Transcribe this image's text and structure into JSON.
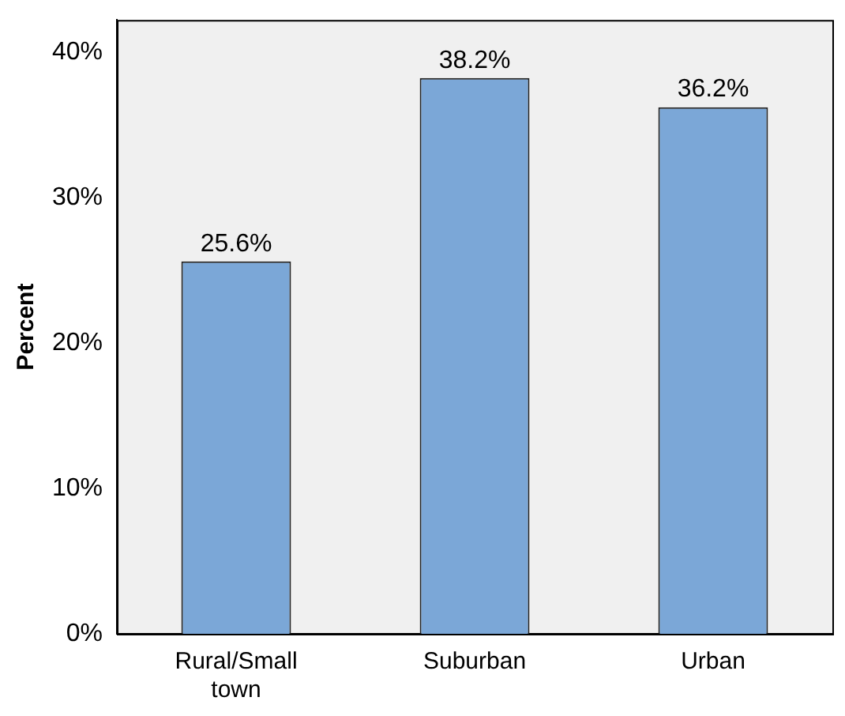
{
  "chart_data": {
    "type": "bar",
    "ylabel": "Percent",
    "categories": [
      "Rural/Small town",
      "Suburban",
      "Urban"
    ],
    "values": [
      25.6,
      38.2,
      36.2
    ],
    "value_labels": [
      "25.6%",
      "38.2%",
      "36.2%"
    ],
    "color": "#7ba7d7",
    "ylim": [
      0,
      42.2
    ],
    "yticks": [
      {
        "value": 0,
        "label": "0%"
      },
      {
        "value": 10,
        "label": "10%"
      },
      {
        "value": 20,
        "label": "20%"
      },
      {
        "value": 30,
        "label": "30%"
      },
      {
        "value": 40,
        "label": "40%"
      }
    ],
    "grid": false
  }
}
